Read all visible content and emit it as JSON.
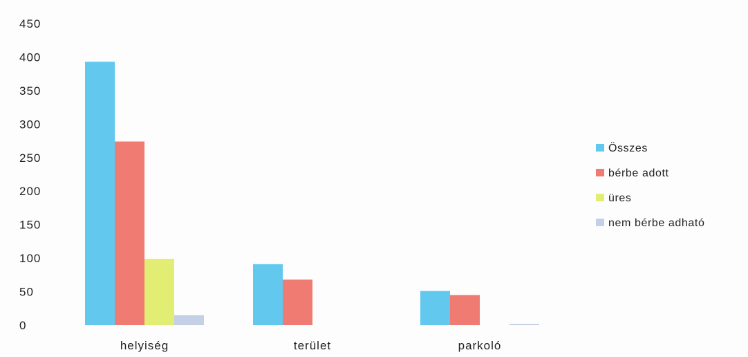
{
  "chart_data": {
    "type": "bar",
    "title": "",
    "xlabel": "",
    "ylabel": "",
    "categories": [
      "helyiség",
      "terület",
      "parkoló"
    ],
    "series": [
      {
        "name": "Összes",
        "values": [
          393,
          91,
          51
        ],
        "color": "#62c8ee"
      },
      {
        "name": "bérbe adott",
        "values": [
          274,
          68,
          45
        ],
        "color": "#f07b72"
      },
      {
        "name": "üres",
        "values": [
          99,
          0,
          0
        ],
        "color": "#e2ee73"
      },
      {
        "name": "nem bérbe adható",
        "values": [
          15,
          0,
          2
        ],
        "color": "#c3d0e6"
      }
    ],
    "yticks": [
      "0",
      "50",
      "100",
      "150",
      "200",
      "250",
      "300",
      "350",
      "400",
      "450"
    ],
    "ylim": [
      0,
      450
    ],
    "grid": false,
    "legend_position": "right"
  }
}
